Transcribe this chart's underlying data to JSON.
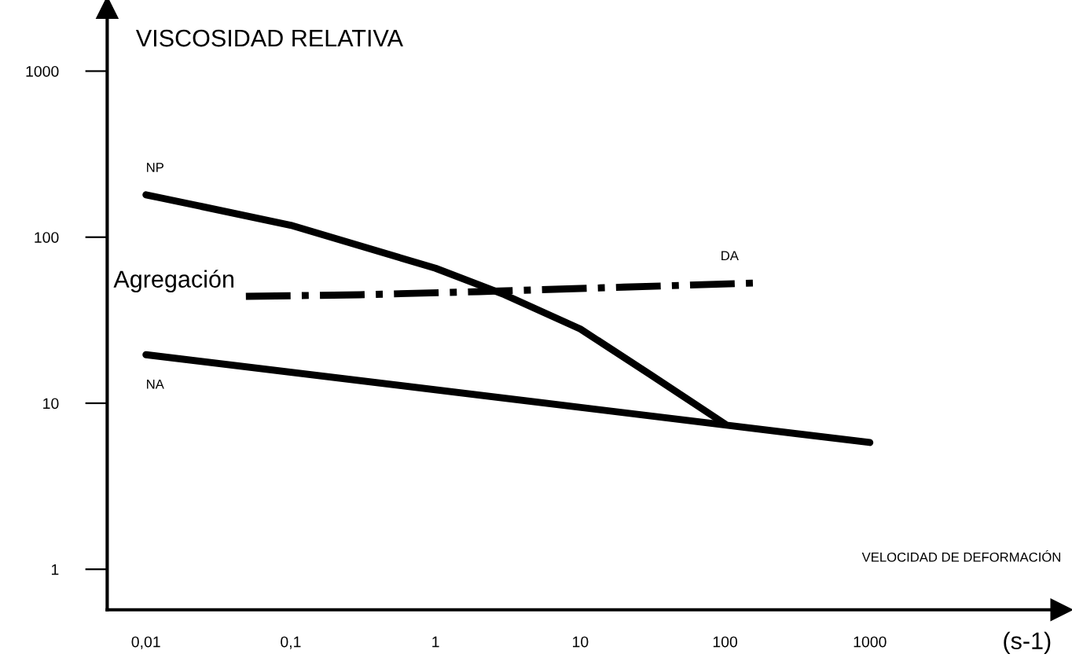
{
  "chart_data": {
    "type": "line",
    "ylabel": "VISCOSIDAD RELATIVA",
    "xlabel": "VELOCIDAD DE DEFORMACIÓN",
    "log": "xy",
    "xlim": [
      0.0054,
      21000
    ],
    "ylim": [
      0.57,
      2400
    ],
    "xticks": [
      {
        "value": 0.01,
        "label": "0,01"
      },
      {
        "value": 0.1,
        "label": "0,1"
      },
      1,
      10,
      100,
      1000
    ],
    "yticks": [
      1,
      10,
      100,
      1000
    ],
    "grid": false,
    "marker": "none",
    "series": [
      {
        "color": "#000000",
        "line_style": "solid",
        "x": [
          0.01,
          0.1,
          1,
          3,
          10,
          30,
          100
        ],
        "values": [
          180,
          118,
          65,
          45,
          28,
          15,
          7.5
        ]
      },
      {
        "color": "#000000",
        "line_style": "solid",
        "x": [
          0.01,
          1000
        ],
        "values": [
          19.6,
          5.8
        ]
      },
      {
        "color": "#000000",
        "line_style": "dashdot",
        "x": [
          0.049,
          0.3,
          2,
          20,
          164
        ],
        "values": [
          44,
          45,
          47,
          50,
          53
        ]
      }
    ],
    "annotations": [
      "NP",
      "NA",
      "DA",
      "Agregación",
      "(s-1)"
    ]
  }
}
